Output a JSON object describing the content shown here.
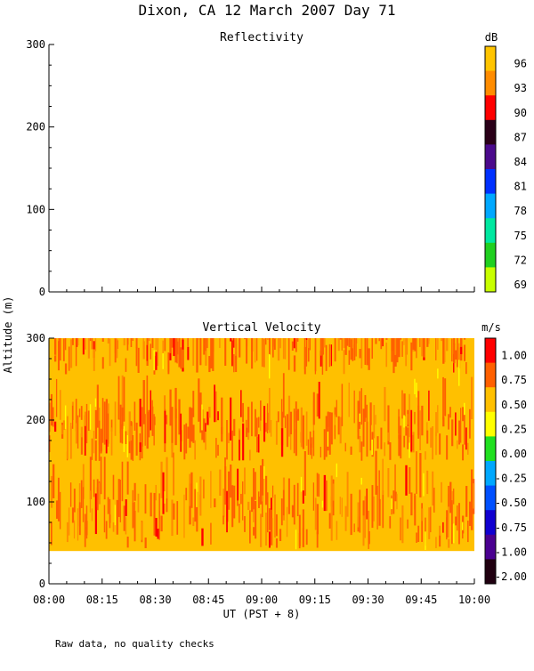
{
  "figure": {
    "title": "Dixon, CA 12 March 2007  Day  71",
    "ylabel": "Altitude (m)",
    "xlabel": "UT  (PST + 8)",
    "footnote": "Raw data, no quality checks"
  },
  "chart_data": [
    {
      "type": "heatmap",
      "title": "Reflectivity",
      "ylabel": "Altitude (m)",
      "ylim": [
        0,
        300
      ],
      "yticks": [
        0,
        100,
        200,
        300
      ],
      "xlim": [
        "08:00",
        "10:00"
      ],
      "data": "empty",
      "colorbar": {
        "unit": "dB",
        "ticks": [
          "96",
          "93",
          "90",
          "87",
          "84",
          "81",
          "78",
          "75",
          "72",
          "69"
        ],
        "colors": [
          "#ffc400",
          "#ff8c00",
          "#ff0000",
          "#2a0018",
          "#4b0a8c",
          "#0030ff",
          "#00a8ff",
          "#00e8a0",
          "#20d020",
          "#c8ff00"
        ]
      }
    },
    {
      "type": "heatmap",
      "title": "Vertical Velocity",
      "ylabel": "Altitude (m)",
      "ylim": [
        0,
        300
      ],
      "yticks": [
        0,
        100,
        200,
        300
      ],
      "xlabel": "UT  (PST + 8)",
      "xticks": [
        "08:00",
        "08:15",
        "08:30",
        "08:45",
        "09:00",
        "09:15",
        "09:30",
        "09:45",
        "10:00"
      ],
      "x_range_hours": [
        8.0,
        10.0
      ],
      "data_altitude_range_m": [
        40,
        300
      ],
      "dominant_values_m_s": [
        0.5,
        0.75
      ],
      "colorbar": {
        "unit": "m/s",
        "ticks": [
          "1.00",
          "0.75",
          "0.50",
          "0.25",
          "0.00",
          "-0.25",
          "-0.50",
          "-0.75",
          "-1.00",
          "-2.00"
        ],
        "colors": [
          "#ff0000",
          "#ff6000",
          "#ffc000",
          "#ffff00",
          "#20e020",
          "#00a8ff",
          "#0050ff",
          "#1000d0",
          "#4a0090",
          "#200010"
        ]
      }
    }
  ]
}
